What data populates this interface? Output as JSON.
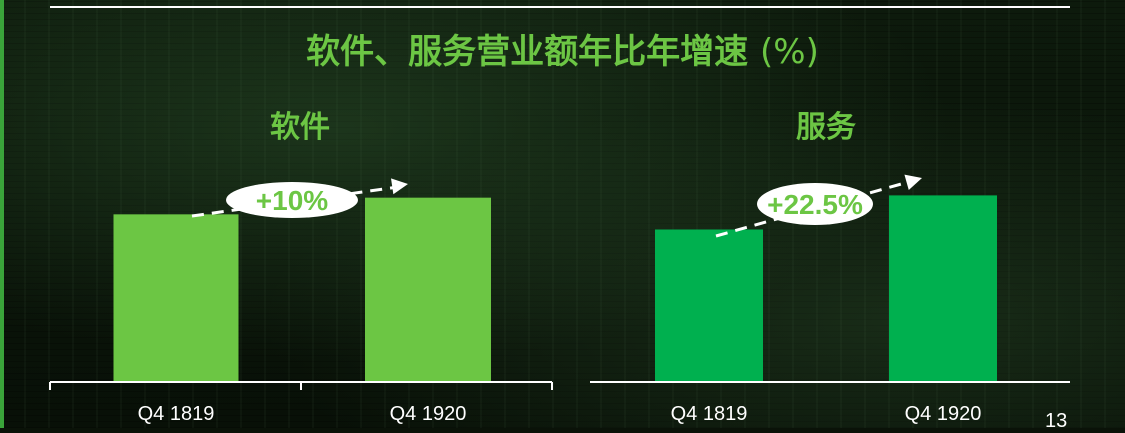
{
  "header": {
    "title_main": "软件、服务营业额年比年增速",
    "title_unit": "(%)"
  },
  "page_number": "13",
  "colors": {
    "software": "#6cc644",
    "services": "#00b04f",
    "accent_text": "#6cc644"
  },
  "chart_data": [
    {
      "type": "bar",
      "title": "软件",
      "categories": [
        "Q4 1819",
        "Q4 1920"
      ],
      "values": [
        100,
        110
      ],
      "ylim": [
        0,
        150
      ],
      "annotation": "+10%",
      "grid": false,
      "legend": "none"
    },
    {
      "type": "bar",
      "title": "服务",
      "categories": [
        "Q4 1819",
        "Q4 1920"
      ],
      "values": [
        100,
        122.5
      ],
      "ylim": [
        0,
        165
      ],
      "annotation": "+22.5%",
      "grid": false,
      "legend": "none"
    }
  ]
}
